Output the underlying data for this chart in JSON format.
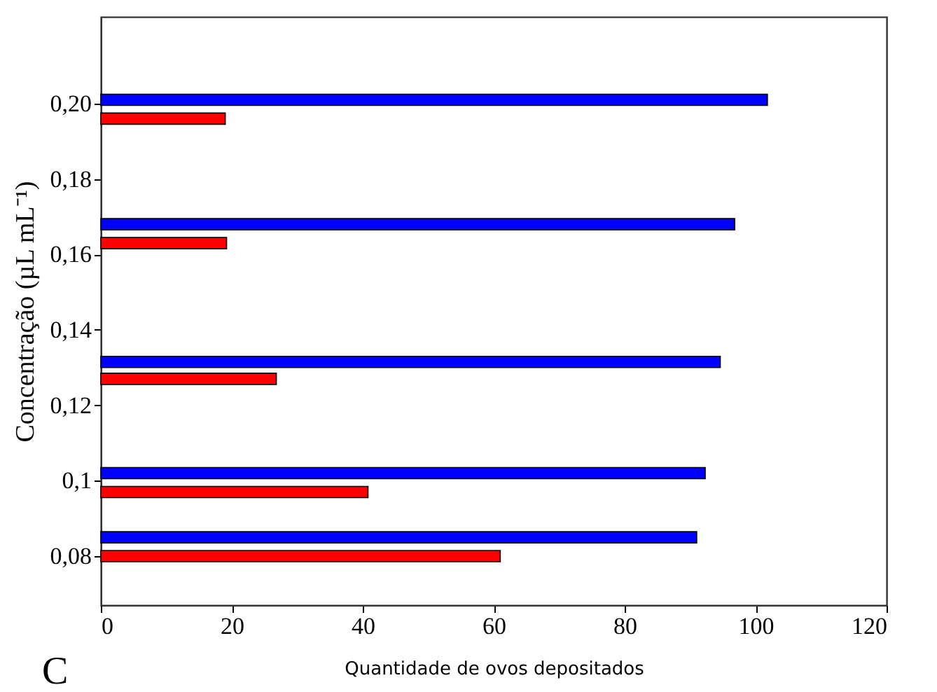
{
  "chart_data": {
    "type": "bar",
    "orientation": "horizontal",
    "xlabel": "Quantidade de ovos depositados",
    "ylabel": "Concentração (µL mL⁻¹)",
    "annotations": [
      "C"
    ],
    "xlim": [
      0,
      120
    ],
    "xticks": [
      0,
      20,
      40,
      60,
      80,
      100,
      120
    ],
    "ylim": [
      0.067,
      0.223
    ],
    "yticks": [
      {
        "value": 0.08,
        "label": "0,08"
      },
      {
        "value": 0.1,
        "label": "0,1"
      },
      {
        "value": 0.12,
        "label": "0,12"
      },
      {
        "value": 0.14,
        "label": "0,14"
      },
      {
        "value": 0.16,
        "label": "0,16"
      },
      {
        "value": 0.18,
        "label": "0,18"
      },
      {
        "value": 0.2,
        "label": "0,20"
      }
    ],
    "grid": false,
    "legend": false,
    "series": [
      {
        "color": "#0000ff",
        "x": [
          0.085,
          0.102,
          0.1315,
          0.168,
          0.201
        ],
        "values": [
          91,
          92.3,
          94.6,
          96.8,
          101.8
        ]
      },
      {
        "color": "#ff0000",
        "x": [
          0.08,
          0.097,
          0.127,
          0.163,
          0.196
        ],
        "values": [
          61,
          40.8,
          26.8,
          19.2,
          19
        ]
      }
    ]
  }
}
